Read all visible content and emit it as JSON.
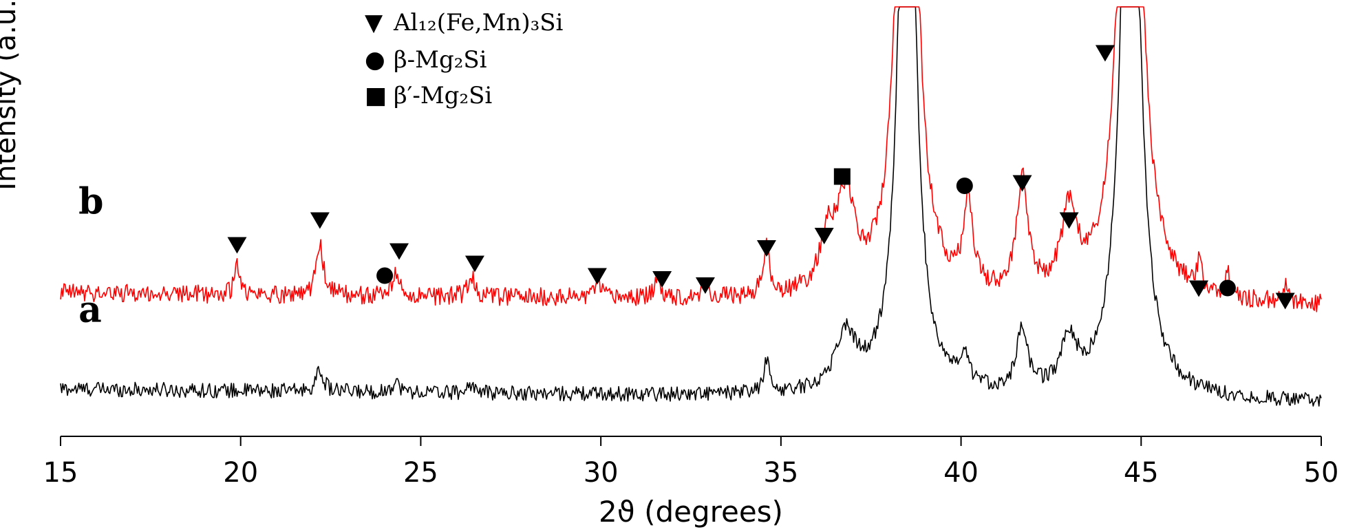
{
  "chart_data": {
    "type": "line",
    "xlabel": "2ϑ (degrees)",
    "ylabel": "Intensity (a.u.)",
    "xlim": [
      15,
      50
    ],
    "xticks": [
      15,
      20,
      25,
      30,
      35,
      40,
      45,
      50
    ],
    "grid": false,
    "legend": [
      {
        "symbol": "triangle-down",
        "glyph": "▼",
        "label": "Al₁₂(Fe,Mn)₃Si"
      },
      {
        "symbol": "circle",
        "glyph": "●",
        "label": "β-Mg₂Si"
      },
      {
        "symbol": "square",
        "glyph": "■",
        "label": "β′-Mg₂Si"
      }
    ],
    "series": [
      {
        "name": "a",
        "color": "#000000",
        "baseline": 0.0,
        "noise": 0.12,
        "peaks": [
          [
            22.2,
            0.35,
            0.12
          ],
          [
            24.3,
            0.2,
            0.1
          ],
          [
            26.4,
            0.15,
            0.1
          ],
          [
            34.6,
            0.5,
            0.1
          ],
          [
            36.8,
            0.9,
            0.35
          ],
          [
            38.5,
            12.0,
            0.25
          ],
          [
            40.1,
            0.4,
            0.15
          ],
          [
            41.7,
            1.0,
            0.18
          ],
          [
            43.0,
            0.8,
            0.25
          ],
          [
            44.7,
            12.0,
            0.28
          ]
        ]
      },
      {
        "name": "b",
        "color": "#ff0000",
        "baseline": 1.55,
        "noise": 0.15,
        "peaks": [
          [
            19.9,
            0.5,
            0.08
          ],
          [
            22.2,
            0.8,
            0.12
          ],
          [
            24.3,
            0.4,
            0.1
          ],
          [
            26.4,
            0.35,
            0.1
          ],
          [
            29.9,
            0.25,
            0.1
          ],
          [
            31.6,
            0.3,
            0.1
          ],
          [
            32.9,
            0.25,
            0.1
          ],
          [
            34.6,
            0.8,
            0.1
          ],
          [
            36.3,
            0.8,
            0.25
          ],
          [
            36.8,
            1.5,
            0.3
          ],
          [
            38.5,
            14.0,
            0.25
          ],
          [
            40.2,
            1.4,
            0.15
          ],
          [
            41.7,
            1.8,
            0.18
          ],
          [
            43.0,
            1.3,
            0.25
          ],
          [
            44.7,
            14.0,
            0.28
          ],
          [
            46.6,
            0.4,
            0.1
          ],
          [
            47.4,
            0.35,
            0.1
          ],
          [
            49.0,
            0.25,
            0.1
          ]
        ]
      }
    ],
    "markers": [
      {
        "x": 19.9,
        "y": 2.55,
        "symbol": "triangle-down"
      },
      {
        "x": 22.2,
        "y": 2.95,
        "symbol": "triangle-down"
      },
      {
        "x": 24.0,
        "y": 2.05,
        "symbol": "circle"
      },
      {
        "x": 24.4,
        "y": 2.45,
        "symbol": "triangle-down"
      },
      {
        "x": 26.5,
        "y": 2.25,
        "symbol": "triangle-down"
      },
      {
        "x": 29.9,
        "y": 2.05,
        "symbol": "triangle-down"
      },
      {
        "x": 31.7,
        "y": 2.0,
        "symbol": "triangle-down"
      },
      {
        "x": 32.9,
        "y": 1.9,
        "symbol": "triangle-down"
      },
      {
        "x": 34.6,
        "y": 2.5,
        "symbol": "triangle-down"
      },
      {
        "x": 36.2,
        "y": 2.7,
        "symbol": "triangle-down"
      },
      {
        "x": 36.7,
        "y": 3.65,
        "symbol": "square"
      },
      {
        "x": 40.1,
        "y": 3.5,
        "symbol": "circle"
      },
      {
        "x": 41.7,
        "y": 3.55,
        "symbol": "triangle-down"
      },
      {
        "x": 43.0,
        "y": 2.95,
        "symbol": "triangle-down"
      },
      {
        "x": 44.0,
        "y": 5.65,
        "symbol": "triangle-down"
      },
      {
        "x": 46.6,
        "y": 1.85,
        "symbol": "triangle-down"
      },
      {
        "x": 47.4,
        "y": 1.85,
        "symbol": "circle"
      },
      {
        "x": 49.0,
        "y": 1.65,
        "symbol": "triangle-down"
      }
    ],
    "curve_labels": [
      {
        "text": "b",
        "x": 15.5,
        "y": 3.05
      },
      {
        "text": "a",
        "x": 15.5,
        "y": 1.3
      }
    ]
  }
}
